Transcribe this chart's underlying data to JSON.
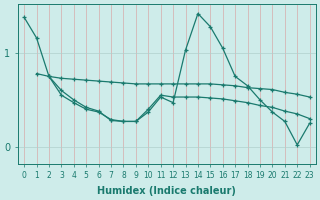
{
  "xlabel": "Humidex (Indice chaleur)",
  "bg_color": "#ceecea",
  "line_color": "#1a7a6e",
  "grid_color": "#b0d0cc",
  "xlim": [
    -0.5,
    23.5
  ],
  "ylim": [
    -0.18,
    1.52
  ],
  "y_ticks": [
    0,
    1
  ],
  "x_ticks": [
    0,
    1,
    2,
    3,
    4,
    5,
    6,
    7,
    8,
    9,
    10,
    11,
    12,
    13,
    14,
    15,
    16,
    17,
    18,
    19,
    20,
    21,
    22,
    23
  ],
  "series": [
    {
      "x": [
        0,
        1,
        2,
        3,
        4,
        5,
        6,
        7,
        8,
        9,
        10,
        11,
        12,
        13,
        14,
        15,
        16,
        17,
        18,
        19,
        20,
        21,
        22,
        23
      ],
      "y": [
        1.38,
        1.16,
        0.75,
        0.55,
        0.47,
        0.4,
        0.37,
        0.29,
        0.27,
        0.27,
        0.37,
        0.53,
        0.47,
        1.03,
        1.42,
        1.28,
        1.05,
        0.75,
        0.65,
        0.5,
        0.37,
        0.27,
        0.02,
        0.25
      ]
    },
    {
      "x": [
        1,
        2,
        3,
        4,
        5,
        6,
        7,
        8,
        9,
        10,
        11,
        12,
        13,
        14,
        15,
        16,
        17,
        18,
        19,
        20,
        21,
        22,
        23
      ],
      "y": [
        0.78,
        0.75,
        0.73,
        0.72,
        0.71,
        0.7,
        0.69,
        0.68,
        0.67,
        0.67,
        0.67,
        0.67,
        0.67,
        0.67,
        0.67,
        0.66,
        0.65,
        0.63,
        0.62,
        0.61,
        0.58,
        0.56,
        0.53
      ]
    },
    {
      "x": [
        2,
        3,
        4,
        5,
        6,
        7,
        8,
        9,
        10,
        11,
        12,
        13,
        14,
        15,
        16,
        17,
        18,
        19,
        20,
        21,
        22,
        23
      ],
      "y": [
        0.75,
        0.6,
        0.5,
        0.42,
        0.38,
        0.28,
        0.27,
        0.27,
        0.4,
        0.55,
        0.53,
        0.53,
        0.53,
        0.52,
        0.51,
        0.49,
        0.47,
        0.44,
        0.42,
        0.38,
        0.35,
        0.3
      ]
    }
  ]
}
